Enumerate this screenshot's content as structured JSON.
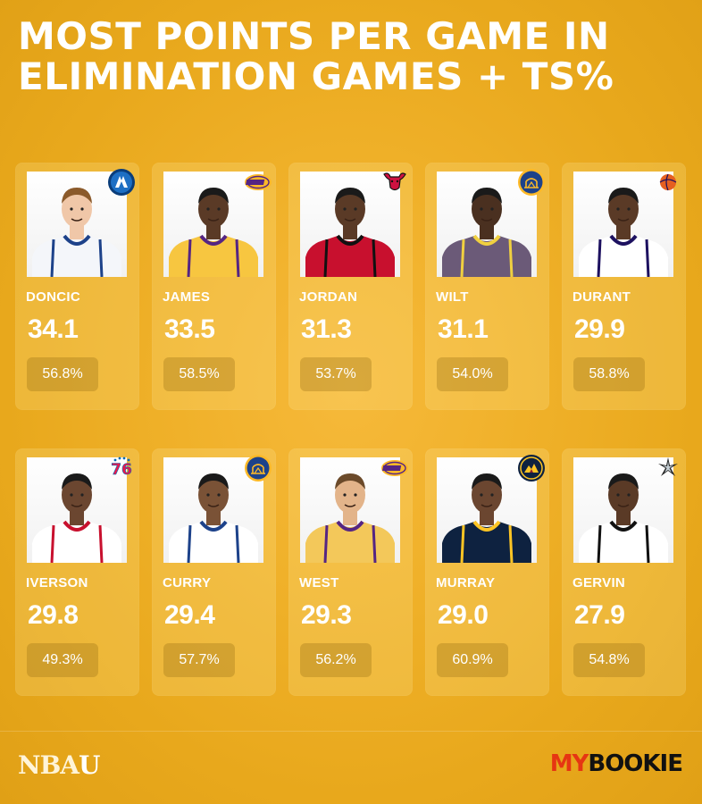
{
  "title": "MOST POINTS PER GAME IN ELIMINATION GAMES + TS%",
  "players": [
    {
      "name": "DONCIC",
      "ppg": "34.1",
      "ts": "56.8%",
      "team_icon": "mavericks-logo-icon",
      "jersey": "#f4f6fa",
      "trim": "#1d428a",
      "skin": "#f0c7a8",
      "hair": "#8b5a2b"
    },
    {
      "name": "JAMES",
      "ppg": "33.5",
      "ts": "58.5%",
      "team_icon": "lakers-logo-icon",
      "jersey": "#f7c640",
      "trim": "#552583",
      "skin": "#5a3a26",
      "hair": "#1a1a1a"
    },
    {
      "name": "JORDAN",
      "ppg": "31.3",
      "ts": "53.7%",
      "team_icon": "bulls-logo-icon",
      "jersey": "#c8102e",
      "trim": "#111111",
      "skin": "#5a3a26",
      "hair": "#1a1a1a"
    },
    {
      "name": "WILT",
      "ppg": "31.1",
      "ts": "54.0%",
      "team_icon": "warriors-logo-icon",
      "jersey": "#6b5a78",
      "trim": "#f0d040",
      "skin": "#4a3020",
      "hair": "#1a1a1a"
    },
    {
      "name": "DURANT",
      "ppg": "29.9",
      "ts": "58.8%",
      "team_icon": "suns-logo-icon",
      "jersey": "#ffffff",
      "trim": "#1d1160",
      "skin": "#5a3a26",
      "hair": "#1a1a1a"
    },
    {
      "name": "IVERSON",
      "ppg": "29.8",
      "ts": "49.3%",
      "team_icon": "76ers-logo-icon",
      "jersey": "#ffffff",
      "trim": "#c8102e",
      "skin": "#6b4630",
      "hair": "#1a1a1a"
    },
    {
      "name": "CURRY",
      "ppg": "29.4",
      "ts": "57.7%",
      "team_icon": "warriors-logo-icon",
      "jersey": "#ffffff",
      "trim": "#1d428a",
      "skin": "#7a5236",
      "hair": "#1a1a1a"
    },
    {
      "name": "WEST",
      "ppg": "29.3",
      "ts": "56.2%",
      "team_icon": "lakers-logo-icon",
      "jersey": "#f3c85a",
      "trim": "#552583",
      "skin": "#e3b48a",
      "hair": "#6b4a2a"
    },
    {
      "name": "MURRAY",
      "ppg": "29.0",
      "ts": "60.9%",
      "team_icon": "nuggets-logo-icon",
      "jersey": "#0e2240",
      "trim": "#fec524",
      "skin": "#6b4630",
      "hair": "#1a1a1a"
    },
    {
      "name": "GERVIN",
      "ppg": "27.9",
      "ts": "54.8%",
      "team_icon": "spurs-logo-icon",
      "jersey": "#ffffff",
      "trim": "#111111",
      "skin": "#5a3a26",
      "hair": "#1a1a1a"
    }
  ],
  "footer": {
    "left_brand_main": "NBA",
    "left_brand_accent": "U",
    "right_brand_red": "MY",
    "right_brand_dark": "BOOKIE"
  }
}
